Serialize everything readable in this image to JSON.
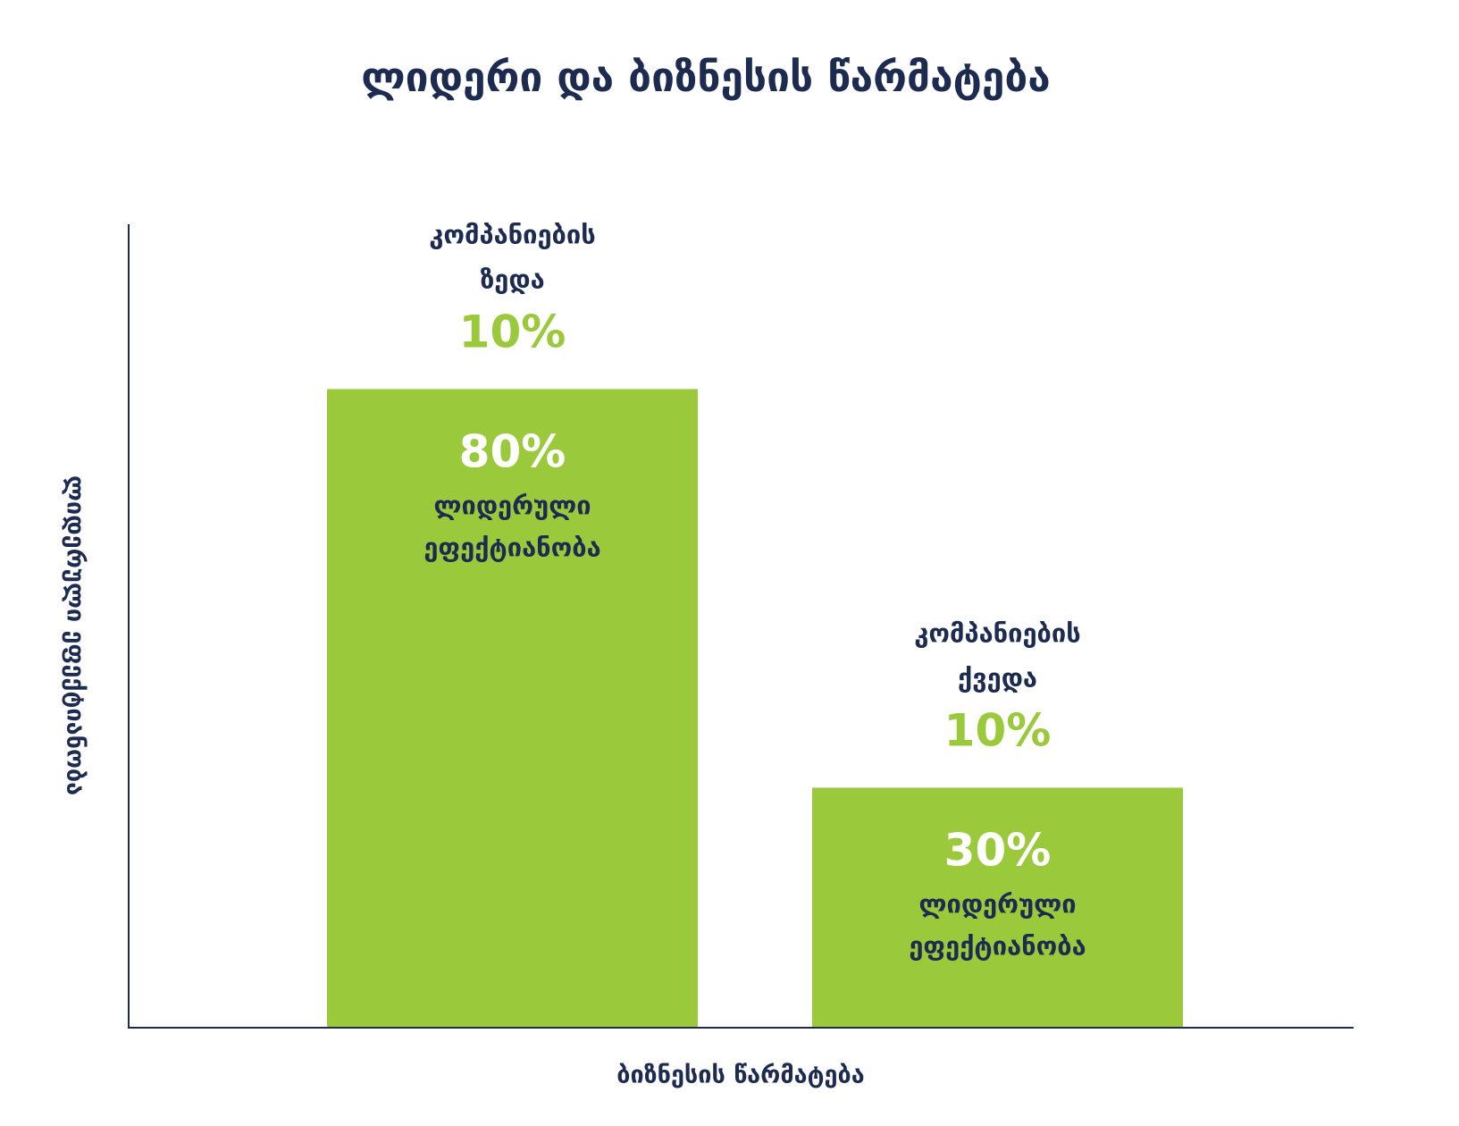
{
  "colors": {
    "text": "#1c2b4f",
    "bar": "#9bc93c",
    "highlight": "#9bc93c",
    "value_text": "#ffffff",
    "axis": "#1c2b4f"
  },
  "chart_data": {
    "type": "bar",
    "title": "ლიდერი და ბიზნესის წარმატება",
    "xlabel": "ბიზნესის წარმატება",
    "ylabel": "ლიდერული ეფექტიანობა",
    "ylim": [
      0,
      100
    ],
    "grid": false,
    "legend": "none",
    "categories": [
      [
        "კომპანიების",
        "ზედა",
        "10%"
      ],
      [
        "კომპანიების",
        "ქვედა",
        "10%"
      ]
    ],
    "values": [
      80,
      30
    ],
    "value_labels": [
      "80%",
      "30%"
    ],
    "value_captions": [
      [
        "ლიდერული",
        "ეფექტიანობა"
      ],
      [
        "ლიდერული",
        "ეფექტიანობა"
      ]
    ]
  }
}
